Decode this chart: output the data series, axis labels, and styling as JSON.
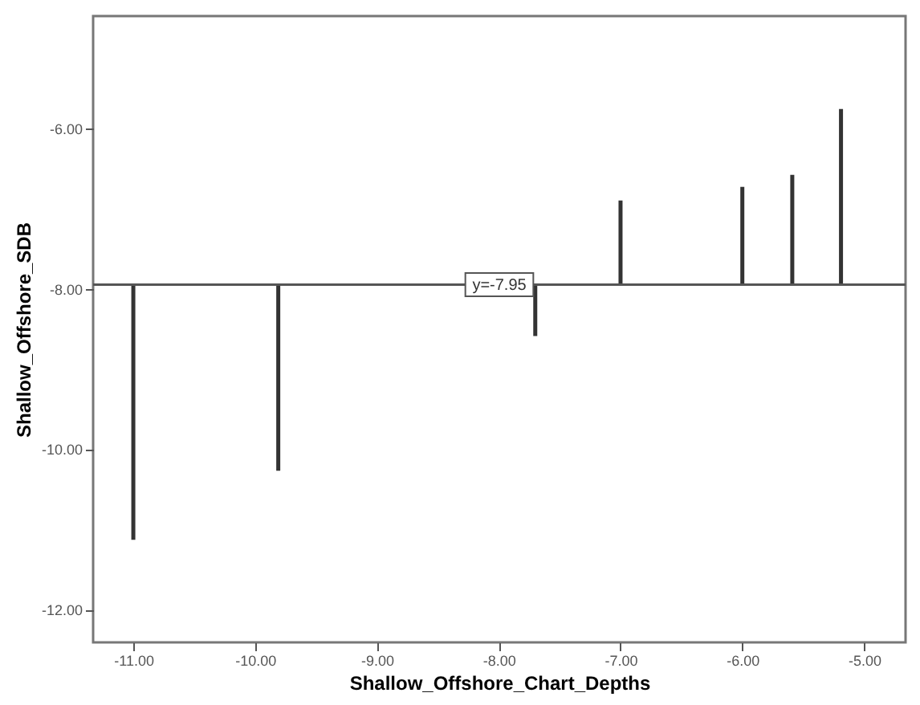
{
  "chart_data": {
    "type": "bar",
    "xlabel": "Shallow_Offshore_Chart_Depths",
    "ylabel": "Shallow_Offshore_SDB",
    "x": [
      -11.0,
      -9.81,
      -7.7,
      -7.0,
      -6.0,
      -5.59,
      -5.19
    ],
    "base": [
      -7.95,
      -7.95,
      -7.95,
      -7.95,
      -7.95,
      -7.95,
      -7.95
    ],
    "values": [
      -3.18,
      -2.32,
      -0.64,
      1.05,
      1.22,
      1.37,
      2.19
    ],
    "color": "#333333",
    "xlim": [
      -11.33,
      -4.66
    ],
    "xticks": [
      {
        "value": -11,
        "label": "-11.00"
      },
      {
        "value": -10,
        "label": "-10.00"
      },
      {
        "value": -9,
        "label": "-9.00"
      },
      {
        "value": -8,
        "label": "-8.00"
      },
      {
        "value": -7,
        "label": "-7.00"
      },
      {
        "value": -6,
        "label": "-6.00"
      },
      {
        "value": -5,
        "label": "-5.00"
      }
    ],
    "ylim": [
      -12.41,
      -4.6
    ],
    "yticks": [
      {
        "value": -12,
        "label": "-12.00"
      },
      {
        "value": -10,
        "label": "-10.00"
      },
      {
        "value": -8,
        "label": "-8.00"
      },
      {
        "value": -6,
        "label": "-6.00"
      }
    ],
    "ref_lines": [
      {
        "axis": "y",
        "value": -7.95,
        "label": "y=-7.95"
      }
    ],
    "grid": false
  }
}
